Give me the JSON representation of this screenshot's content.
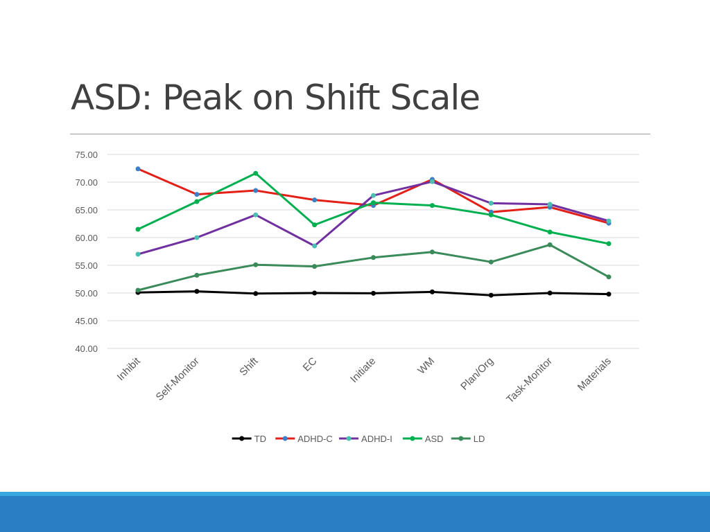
{
  "slide": {
    "title": "ASD: Peak on Shift Scale"
  },
  "colors": {
    "title": "#404040",
    "footer": "#2a7fc4",
    "footer_stripe": "#38a9e0"
  },
  "chart_data": {
    "type": "line",
    "title": "",
    "xlabel": "",
    "ylabel": "",
    "ylim": [
      40,
      75
    ],
    "yticks": [
      "75.00",
      "70.00",
      "65.00",
      "60.00",
      "55.00",
      "50.00",
      "45.00",
      "40.00"
    ],
    "grid": true,
    "legend_position": "bottom",
    "categories": [
      "Inhibit",
      "Self-Monitor",
      "Shift",
      "EC",
      "Initiate",
      "WM",
      "Plan/Org",
      "Task-Monitor",
      "Materials"
    ],
    "series": [
      {
        "name": "TD",
        "color": "#000000",
        "marker_color": "#000000",
        "values": [
          50.1,
          50.3,
          49.9,
          50.0,
          49.95,
          50.2,
          49.6,
          50.0,
          49.8
        ]
      },
      {
        "name": "ADHD-C",
        "color": "#e32018",
        "marker_color": "#3c7fc6",
        "values": [
          72.4,
          67.8,
          68.5,
          66.8,
          65.8,
          70.5,
          64.6,
          65.5,
          62.6
        ]
      },
      {
        "name": "ADHD-I",
        "color": "#7030a0",
        "marker_color": "#4bbfb0",
        "values": [
          57.0,
          60.0,
          64.1,
          58.5,
          67.6,
          70.1,
          66.2,
          66.0,
          63.0
        ]
      },
      {
        "name": "ASD",
        "color": "#00b050",
        "marker_color": "#00b050",
        "values": [
          61.5,
          66.5,
          71.6,
          62.3,
          66.3,
          65.8,
          64.1,
          61.0,
          58.9
        ]
      },
      {
        "name": "LD",
        "color": "#3a8a5a",
        "marker_color": "#3a8a5a",
        "values": [
          50.5,
          53.2,
          55.1,
          54.8,
          56.4,
          57.4,
          55.6,
          58.7,
          52.9
        ]
      }
    ]
  }
}
